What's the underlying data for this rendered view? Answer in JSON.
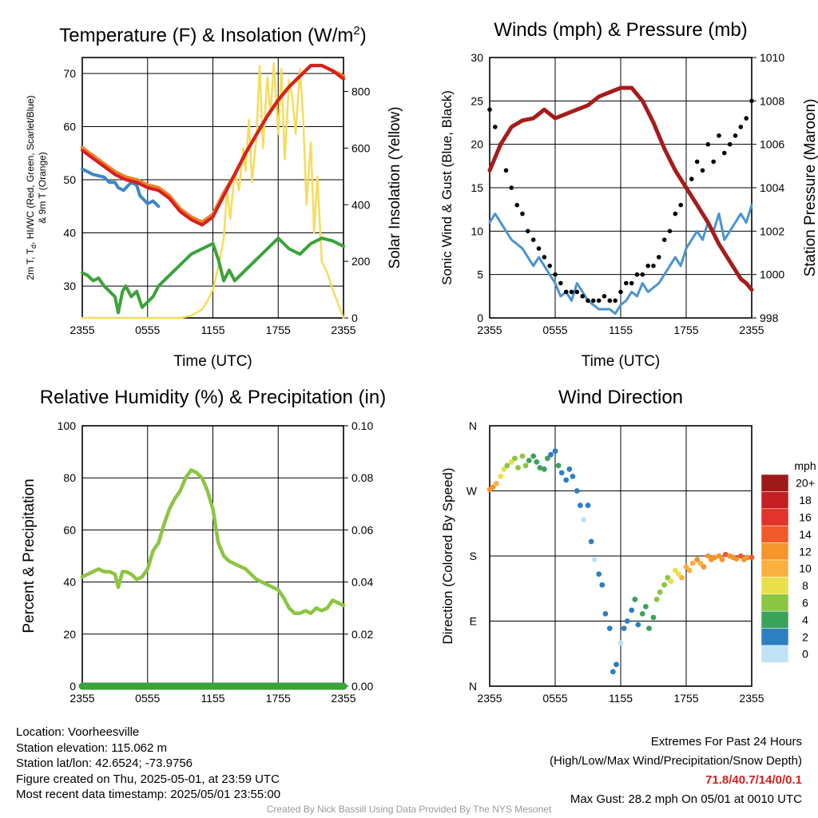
{
  "colors": {
    "temp_red": "#d42020",
    "temp_orange": "#f0802a",
    "temp_scarlet_blue": "#3a88c8",
    "dewpoint_green": "#3aa33a",
    "insolation_yellow": "#f7dc5a",
    "wind_blue": "#4a94d0",
    "gust_black": "#000000",
    "pressure_maroon": "#a61c1c",
    "rh_green": "#8cc542",
    "precip_green": "#3aa33a",
    "extremes_red": "#d42020",
    "credit_gray": "#9a9a9a"
  },
  "x_ticks": [
    "2355",
    "0555",
    "1155",
    "1755",
    "2355"
  ],
  "chart_data": [
    {
      "type": "line",
      "title": "Temperature (F) & Insolation (W/m²)",
      "xlabel": "Time (UTC)",
      "ylabel_left": "2m T, Td, HI/WC (Red, Green, Scarlet/Blue) & 9m T (Orange)",
      "ylabel_left_lines": [
        "2m T, T",
        "d",
        ", HI/WC (Red, Green, Scarlet/Blue)",
        "& 9m T (Orange)"
      ],
      "ylabel_right": "Solar Insolation (Yellow)",
      "ylim_left": [
        24,
        73
      ],
      "ylim_right": [
        0,
        920
      ],
      "yticks_left": [
        30,
        40,
        50,
        60,
        70
      ],
      "yticks_right": [
        0,
        200,
        400,
        600,
        800
      ],
      "x_hours": [
        0,
        24
      ],
      "series": [
        {
          "name": "2m T",
          "color": "temp_red",
          "axis": "left",
          "x": [
            0,
            1,
            2,
            3,
            4,
            5,
            6,
            7,
            8,
            9,
            10,
            11,
            12,
            13,
            14,
            15,
            16,
            17,
            18,
            19,
            20,
            21,
            22,
            23,
            24
          ],
          "values": [
            55.5,
            54,
            52.5,
            51,
            50,
            49.5,
            48.5,
            48,
            46.5,
            44,
            42.5,
            41.5,
            43,
            47,
            51,
            55,
            58.5,
            62,
            65,
            67.5,
            69.5,
            71.5,
            71.5,
            70.5,
            69
          ]
        },
        {
          "name": "9m T",
          "color": "temp_orange",
          "axis": "left",
          "x": [
            0,
            1,
            2,
            3,
            4,
            5,
            6,
            7,
            8,
            9,
            10,
            11,
            12,
            13,
            14,
            15,
            16,
            17,
            18,
            19,
            20,
            21,
            22,
            23,
            24
          ],
          "values": [
            56,
            54.5,
            53,
            51.5,
            50.5,
            50,
            49,
            48.5,
            47,
            44.5,
            43,
            42,
            43.5,
            47.5,
            51,
            55,
            58.5,
            62,
            65,
            67.5,
            69.5,
            71.5,
            71.5,
            70.5,
            69.5
          ]
        },
        {
          "name": "HI/WC",
          "color": "temp_scarlet_blue",
          "axis": "left",
          "x": [
            0,
            1,
            2,
            2.5,
            3,
            3.3,
            3.8,
            4.5,
            5,
            5.3,
            6,
            6.5,
            7
          ],
          "values": [
            52,
            51,
            50.5,
            49.5,
            49.5,
            48.5,
            48,
            49.5,
            49,
            47,
            45.5,
            46,
            45
          ]
        },
        {
          "name": "Td",
          "color": "dewpoint_green",
          "axis": "left",
          "x": [
            0,
            0.5,
            1,
            1.5,
            2,
            2.5,
            3,
            3.3,
            3.7,
            4,
            4.5,
            5,
            5.5,
            6,
            6.5,
            7,
            8,
            9,
            10,
            11,
            12,
            12.5,
            13,
            13.5,
            14,
            15,
            16,
            17,
            18,
            19,
            20,
            21,
            22,
            23,
            23.5,
            24
          ],
          "values": [
            32.5,
            32,
            31,
            31.5,
            30,
            29,
            28,
            25,
            29,
            30,
            28,
            29,
            26,
            27,
            28,
            30,
            32,
            34,
            36,
            37,
            38,
            35,
            31,
            33,
            31,
            33,
            35,
            37,
            39,
            37,
            36,
            38,
            39,
            38.5,
            38,
            37.5
          ]
        },
        {
          "name": "Solar Insolation",
          "color": "insolation_yellow",
          "axis": "right",
          "x": [
            0,
            9,
            10,
            11,
            11.5,
            12,
            12.5,
            13,
            13.3,
            13.6,
            14,
            14.4,
            14.8,
            15,
            15.3,
            15.6,
            16,
            16.3,
            16.6,
            17,
            17.3,
            17.6,
            18,
            18.3,
            18.6,
            19,
            19.3,
            19.6,
            20,
            20.3,
            20.6,
            21,
            21.3,
            21.6,
            22,
            22.5,
            23,
            23.5,
            24
          ],
          "values": [
            0,
            0,
            8,
            30,
            60,
            100,
            180,
            280,
            450,
            350,
            520,
            450,
            600,
            520,
            700,
            480,
            640,
            890,
            600,
            850,
            720,
            900,
            650,
            880,
            560,
            840,
            780,
            650,
            880,
            700,
            400,
            620,
            300,
            500,
            200,
            160,
            100,
            50,
            0
          ]
        }
      ]
    },
    {
      "type": "line",
      "title": "Winds (mph) & Pressure (mb)",
      "xlabel": "Time (UTC)",
      "ylabel_left": "Sonic Wind & Gust (Blue, Black)",
      "ylabel_right": "Station Pressure (Maroon)",
      "ylim_left": [
        0,
        30
      ],
      "ylim_right": [
        998,
        1010
      ],
      "yticks_left": [
        0,
        5,
        10,
        15,
        20,
        25,
        30
      ],
      "yticks_right": [
        998,
        1000,
        1002,
        1004,
        1006,
        1008,
        1010
      ],
      "series": [
        {
          "name": "Sonic Wind",
          "color": "wind_blue",
          "axis": "left",
          "x": [
            0,
            0.5,
            1,
            1.5,
            2,
            2.5,
            3,
            3.5,
            4,
            4.5,
            5,
            5.5,
            6,
            6.5,
            7,
            7.5,
            8,
            8.5,
            9,
            9.5,
            10,
            10.5,
            11,
            11.5,
            12,
            12.5,
            13,
            13.5,
            14,
            14.5,
            15,
            15.5,
            16,
            16.5,
            17,
            17.5,
            18,
            18.5,
            19,
            19.5,
            20,
            20.5,
            21,
            21.5,
            22,
            22.5,
            23,
            23.5,
            24
          ],
          "values": [
            11,
            12,
            11,
            10,
            9,
            8.5,
            8,
            7,
            6,
            7,
            6,
            5,
            4,
            2.5,
            3,
            2,
            4,
            3,
            2,
            1.5,
            1,
            1,
            1,
            0.5,
            1.5,
            2,
            3,
            2.5,
            4,
            3,
            3.5,
            4,
            5,
            6,
            7,
            6,
            8,
            9,
            10,
            9,
            11,
            10,
            12,
            9,
            10,
            11,
            12,
            11,
            13
          ]
        },
        {
          "name": "Gust",
          "color": "gust_black",
          "axis": "left",
          "x": [
            0,
            0.5,
            1,
            1.5,
            2,
            2.5,
            3,
            3.5,
            4,
            4.5,
            5,
            5.5,
            6,
            6.5,
            7,
            7.5,
            8,
            8.5,
            9,
            9.5,
            10,
            10.5,
            11,
            11.5,
            12,
            12.5,
            13,
            13.5,
            14,
            14.5,
            15,
            15.5,
            16,
            16.5,
            17,
            17.5,
            18,
            18.5,
            19,
            19.5,
            20,
            20.5,
            21,
            21.5,
            22,
            22.5,
            23,
            23.5,
            24
          ],
          "values": [
            24,
            22,
            20,
            17,
            15,
            13,
            12,
            10,
            9,
            8,
            7,
            6,
            5,
            4,
            3,
            3,
            3,
            2.5,
            2,
            2,
            2,
            2.5,
            2,
            2,
            3,
            4,
            4,
            5,
            5,
            6,
            6,
            7,
            9,
            10,
            12,
            13,
            15,
            16,
            18,
            17,
            20,
            18,
            21,
            19,
            20,
            21,
            22,
            23,
            25
          ]
        },
        {
          "name": "Station Pressure",
          "color": "pressure_maroon",
          "axis": "right",
          "x": [
            0,
            1,
            2,
            3,
            4,
            5,
            6,
            7,
            8,
            9,
            10,
            11,
            12,
            13,
            14,
            15,
            16,
            17,
            18,
            19,
            20,
            21,
            22,
            23,
            23.5,
            24
          ],
          "values": [
            1004.8,
            1006,
            1006.8,
            1007.1,
            1007.2,
            1007.6,
            1007.2,
            1007.4,
            1007.6,
            1007.8,
            1008.2,
            1008.4,
            1008.6,
            1008.6,
            1008.0,
            1007.0,
            1005.8,
            1004.8,
            1004.0,
            1003.2,
            1002.4,
            1001.4,
            1000.6,
            999.8,
            999.6,
            999.3
          ]
        }
      ]
    },
    {
      "type": "line",
      "title": "Relative Humidity (%) & Precipitation (in)",
      "xlabel": "",
      "ylabel_left": "Percent & Precipitation",
      "ylim_left": [
        0,
        100
      ],
      "ylim_right": [
        0,
        0.1
      ],
      "yticks_left": [
        0,
        20,
        40,
        60,
        80,
        100
      ],
      "yticks_right": [
        0.0,
        0.02,
        0.04,
        0.06,
        0.08,
        0.1
      ],
      "series": [
        {
          "name": "Relative Humidity",
          "color": "rh_green",
          "axis": "left",
          "x": [
            0,
            0.5,
            1,
            1.5,
            2,
            2.5,
            3,
            3.3,
            3.7,
            4,
            4.5,
            5,
            5.5,
            6,
            6.5,
            7,
            7.5,
            8,
            8.5,
            9,
            9.5,
            10,
            10.5,
            11,
            11.5,
            12,
            12.5,
            13,
            13.5,
            14,
            15,
            16,
            17,
            18,
            18.5,
            19,
            19.5,
            20,
            20.5,
            21,
            21.5,
            22,
            22.5,
            23,
            23.5,
            24
          ],
          "values": [
            42,
            43,
            44,
            45,
            44,
            44,
            43,
            38,
            44,
            44,
            43,
            41,
            42,
            45,
            52,
            55,
            62,
            68,
            72,
            75,
            80,
            83,
            82,
            80,
            75,
            68,
            55,
            50,
            48,
            47,
            45,
            41,
            39,
            37,
            34,
            30,
            28,
            28,
            29,
            28,
            30,
            29,
            30,
            33,
            32,
            31
          ]
        },
        {
          "name": "Precipitation",
          "color": "precip_green",
          "axis": "right",
          "x": [
            0,
            24
          ],
          "values": [
            0,
            0
          ]
        }
      ]
    },
    {
      "type": "scatter",
      "title": "Wind Direction",
      "ylabel_left": "Direction (Colored By Speed)",
      "ylim_left": [
        0,
        360
      ],
      "ytick_values": [
        0,
        90,
        180,
        270,
        360
      ],
      "ytick_labels": [
        "N",
        "E",
        "S",
        "W",
        "N"
      ],
      "legend_title": "mph",
      "legend_labels": [
        "20+",
        "18",
        "16",
        "14",
        "12",
        "10",
        "8",
        "6",
        "4",
        "2",
        "0"
      ],
      "legend_colors": [
        "#9e1a1a",
        "#c41e22",
        "#e2342a",
        "#f05a2a",
        "#f5952a",
        "#fbb040",
        "#e8e04a",
        "#8cc542",
        "#3aa35a",
        "#2e7fc0",
        "#bfe3f5"
      ],
      "series": [
        {
          "name": "Direction",
          "x": [
            0,
            0.3,
            0.6,
            1,
            1.3,
            1.6,
            2,
            2.3,
            2.6,
            3,
            3.3,
            3.6,
            4,
            4.3,
            4.6,
            5,
            5.3,
            5.6,
            6,
            6.3,
            6.6,
            7,
            7.3,
            7.6,
            8,
            8.3,
            8.6,
            9,
            9.3,
            9.6,
            10,
            10.3,
            10.6,
            11,
            11.3,
            11.6,
            12,
            12.3,
            12.6,
            13,
            13.3,
            13.6,
            14,
            14.3,
            14.6,
            15,
            15.3,
            15.6,
            16,
            16.3,
            16.6,
            17,
            17.3,
            17.6,
            18,
            18.3,
            18.6,
            19,
            19.3,
            19.6,
            20,
            20.3,
            20.6,
            21,
            21.3,
            21.6,
            22,
            22.3,
            22.6,
            23,
            23.3,
            23.6,
            24
          ],
          "values": [
            272,
            275,
            280,
            290,
            300,
            305,
            310,
            315,
            302,
            318,
            305,
            312,
            318,
            310,
            302,
            300,
            315,
            320,
            325,
            305,
            295,
            285,
            300,
            290,
            270,
            250,
            230,
            250,
            200,
            175,
            155,
            140,
            100,
            80,
            20,
            30,
            60,
            80,
            90,
            105,
            120,
            85,
            100,
            110,
            80,
            95,
            120,
            130,
            140,
            150,
            145,
            160,
            155,
            150,
            165,
            160,
            170,
            175,
            170,
            165,
            180,
            175,
            178,
            180,
            175,
            182,
            180,
            178,
            176,
            180,
            175,
            178,
            178
          ],
          "speeds": [
            12,
            11,
            9,
            8,
            7,
            6,
            7,
            6,
            5,
            6,
            5,
            4,
            3,
            4,
            3,
            4,
            3,
            2,
            2,
            3,
            2,
            1,
            1,
            2,
            1,
            1,
            0,
            1,
            1,
            0,
            1,
            1,
            2,
            2,
            1,
            1,
            0,
            1,
            1,
            2,
            3,
            2,
            3,
            3,
            4,
            4,
            5,
            5,
            6,
            6,
            7,
            7,
            8,
            9,
            10,
            9,
            10,
            11,
            10,
            12,
            11,
            12,
            11,
            12,
            11,
            13,
            12,
            11,
            12,
            13,
            12,
            12,
            13
          ]
        }
      ]
    }
  ],
  "titles": {
    "temp_pre": "Temperature (F) & Insolation (W/m",
    "temp_sup": "2",
    "temp_post": ")",
    "wind": "Winds (mph) & Pressure (mb)",
    "rh": "Relative Humidity (%) & Precipitation (in)",
    "dir": "Wind Direction"
  },
  "footer": {
    "location": "Location: Voorheesville",
    "elevation": "Station elevation: 115.062 m",
    "latlon": "Station lat/lon: 42.6524; -73.9756",
    "created": "Figure created on Thu, 2025-05-01, at 23:59 UTC",
    "recent": "Most recent data timestamp: 2025/05/01 23:55:00",
    "extremes_title": "Extremes For Past 24 Hours",
    "extremes_desc": "(High/Low/Max Wind/Precipitation/Snow Depth)",
    "extremes_values": "71.8/40.7/14/0/0.1",
    "max_gust": "Max Gust: 28.2 mph On 05/01 at 0010 UTC",
    "credit": "Created By Nick Bassill Using Data Provided By The NYS Mesonet"
  }
}
